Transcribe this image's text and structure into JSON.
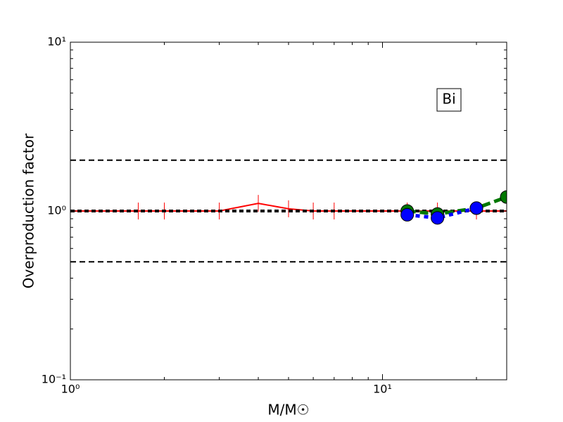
{
  "chart_data": {
    "type": "line",
    "xlabel": "M/M☉",
    "ylabel": "Overproduction factor",
    "annotation": "Bi",
    "xscale": "log",
    "yscale": "log",
    "xlim": [
      1,
      25
    ],
    "ylim": [
      0.1,
      10
    ],
    "xticks": [
      {
        "value": 1,
        "label": "10⁰"
      },
      {
        "value": 10,
        "label": "10¹"
      }
    ],
    "yticks": [
      {
        "value": 0.1,
        "label": "10⁻¹"
      },
      {
        "value": 1,
        "label": "10⁰"
      },
      {
        "value": 10,
        "label": "10¹"
      }
    ],
    "reference_lines": [
      {
        "value": 2,
        "style": "dashed"
      },
      {
        "value": 1,
        "style": "dotted"
      },
      {
        "value": 0.5,
        "style": "dashed"
      }
    ],
    "series": [
      {
        "color": "#ff0000",
        "style": "solid",
        "marker": "vline",
        "x": [
          1,
          1.65,
          2,
          3,
          4,
          5,
          6,
          7,
          12,
          15,
          20,
          25
        ],
        "values": [
          1,
          1,
          1,
          1,
          1.11,
          1.03,
          1,
          1,
          1,
          1,
          1,
          1
        ]
      },
      {
        "color": "#007700",
        "style": "dashed",
        "marker": "circle",
        "x": [
          12,
          15,
          20,
          25
        ],
        "values": [
          1.0,
          0.96,
          1.04,
          1.21
        ]
      },
      {
        "color": "#0000ff",
        "style": "dotted",
        "marker": "circle",
        "x": [
          12,
          15,
          20
        ],
        "values": [
          0.95,
          0.91,
          1.04
        ]
      }
    ]
  }
}
